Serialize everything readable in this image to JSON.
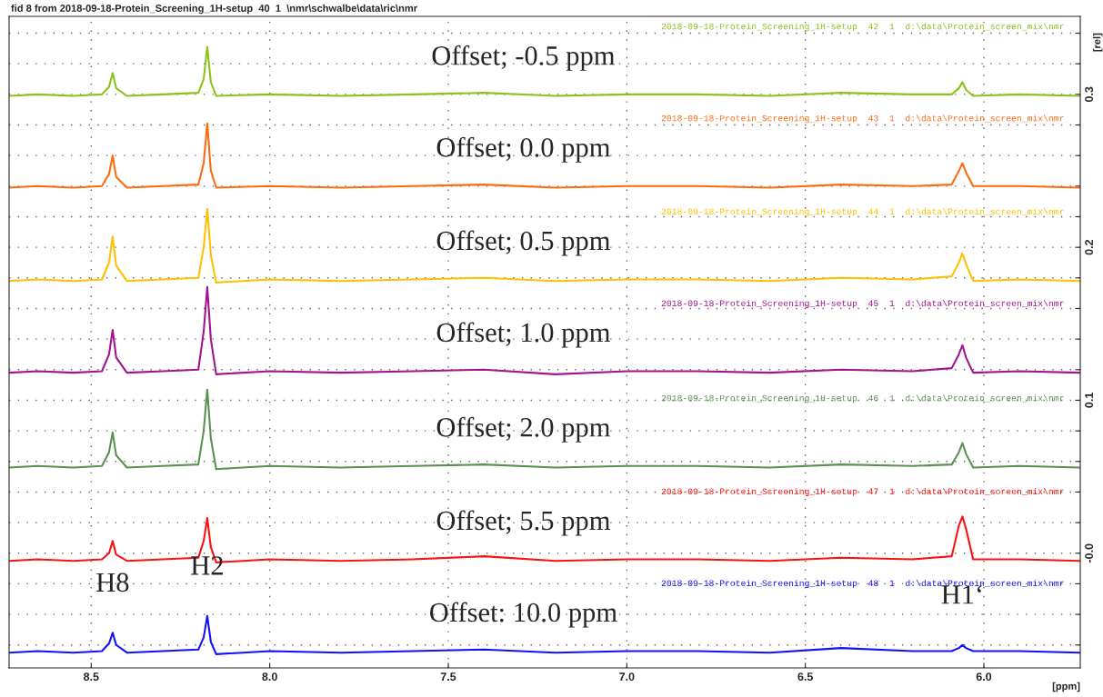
{
  "chart_data": {
    "type": "line",
    "ylabel": "[rel]",
    "xlabel": "[ppm]",
    "x": [
      8.73,
      8.65,
      8.55,
      8.47,
      8.45,
      8.44,
      8.43,
      8.4,
      8.3,
      8.2,
      8.185,
      8.175,
      8.165,
      8.15,
      8.0,
      7.8,
      7.6,
      7.4,
      7.2,
      7.0,
      6.8,
      6.6,
      6.4,
      6.2,
      6.09,
      6.07,
      6.06,
      6.05,
      6.03,
      5.9,
      5.73
    ],
    "series": [
      {
        "name": "2018-09-18-Protein_Screening_1H-setup  42  1  d:\\data\\Protein_screen_mix\\nmr",
        "color": "#8cc21c",
        "values": [
          0.299,
          0.3,
          0.299,
          0.3,
          0.305,
          0.314,
          0.304,
          0.299,
          0.3,
          0.301,
          0.31,
          0.331,
          0.308,
          0.299,
          0.3,
          0.299,
          0.3,
          0.301,
          0.299,
          0.3,
          0.3,
          0.299,
          0.301,
          0.3,
          0.3,
          0.304,
          0.308,
          0.303,
          0.299,
          0.3,
          0.299
        ]
      },
      {
        "name": "2018-09-18-Protein_Screening_1H-setup  43  1  d:\\data\\Protein_screen_mix\\nmr",
        "color": "#ff6a10",
        "values": [
          0.239,
          0.24,
          0.239,
          0.24,
          0.248,
          0.26,
          0.246,
          0.239,
          0.24,
          0.241,
          0.255,
          0.281,
          0.25,
          0.239,
          0.24,
          0.239,
          0.24,
          0.241,
          0.239,
          0.24,
          0.24,
          0.239,
          0.241,
          0.24,
          0.241,
          0.25,
          0.255,
          0.249,
          0.24,
          0.24,
          0.239
        ]
      },
      {
        "name": "2018-09-18-Protein_Screening_1H-setup  44  1  d:\\data\\Protein_screen_mix\\nmr",
        "color": "#ffc000",
        "values": [
          0.178,
          0.179,
          0.178,
          0.179,
          0.19,
          0.207,
          0.188,
          0.178,
          0.179,
          0.18,
          0.2,
          0.225,
          0.195,
          0.177,
          0.179,
          0.178,
          0.179,
          0.18,
          0.178,
          0.179,
          0.179,
          0.178,
          0.18,
          0.179,
          0.181,
          0.19,
          0.196,
          0.189,
          0.178,
          0.179,
          0.178
        ]
      },
      {
        "name": "2018-09-18-Protein_Screening_1H-setup  45  1  d:\\data\\Protein_screen_mix\\nmr",
        "color": "#a3128f",
        "values": [
          0.118,
          0.119,
          0.118,
          0.119,
          0.13,
          0.146,
          0.128,
          0.118,
          0.119,
          0.12,
          0.145,
          0.174,
          0.14,
          0.117,
          0.119,
          0.118,
          0.119,
          0.12,
          0.117,
          0.119,
          0.119,
          0.118,
          0.12,
          0.119,
          0.121,
          0.13,
          0.136,
          0.128,
          0.118,
          0.119,
          0.118
        ]
      },
      {
        "name": "2018-09-18-Protein_Screening_1H-setup  46  1  d:\\data\\Protein_screen_mix\\nmr",
        "color": "#5a9050",
        "values": [
          0.056,
          0.057,
          0.056,
          0.057,
          0.066,
          0.079,
          0.064,
          0.056,
          0.057,
          0.058,
          0.08,
          0.107,
          0.075,
          0.055,
          0.057,
          0.056,
          0.057,
          0.058,
          0.056,
          0.057,
          0.057,
          0.056,
          0.058,
          0.057,
          0.058,
          0.066,
          0.072,
          0.065,
          0.056,
          0.057,
          0.056
        ]
      },
      {
        "name": "2018-09-18-Protein_Screening_1H-setup  47  1  d:\\data\\Protein_screen_mix\\nmr",
        "color": "#ff1010",
        "values": [
          -0.005,
          -0.004,
          -0.005,
          -0.004,
          0.0,
          0.008,
          -0.001,
          -0.005,
          -0.004,
          -0.003,
          0.008,
          0.023,
          0.004,
          -0.006,
          -0.004,
          -0.005,
          -0.004,
          -0.002,
          -0.005,
          -0.004,
          -0.004,
          -0.005,
          -0.003,
          -0.004,
          -0.002,
          0.018,
          0.024,
          0.016,
          -0.004,
          -0.004,
          -0.005
        ]
      },
      {
        "name": "2018-09-18-Protein_Screening_1H-setup  48  1  d:\\data\\Protein_screen_mix\\nmr",
        "color": "#1010ff",
        "values": [
          -0.065,
          -0.064,
          -0.065,
          -0.064,
          -0.059,
          -0.052,
          -0.06,
          -0.065,
          -0.064,
          -0.063,
          -0.055,
          -0.041,
          -0.058,
          -0.066,
          -0.064,
          -0.065,
          -0.064,
          -0.063,
          -0.065,
          -0.064,
          -0.064,
          -0.065,
          -0.062,
          -0.064,
          -0.064,
          -0.062,
          -0.06,
          -0.062,
          -0.064,
          -0.064,
          -0.065
        ]
      }
    ],
    "xlim": [
      8.73,
      5.73
    ],
    "xticks": [
      8.5,
      {
        "value": 8.0,
        "label": "8.0"
      },
      7.5,
      {
        "value": 7.0,
        "label": "7.0"
      },
      6.5,
      {
        "value": 6.0,
        "label": "6.0"
      }
    ],
    "ylim": [
      -0.075,
      0.351
    ],
    "yticks": [
      {
        "value": -0.06,
        "label": null
      },
      {
        "value": -0.04,
        "label": null
      },
      {
        "value": -0.02,
        "label": null
      },
      {
        "value": 0,
        "label": "-0.0"
      },
      {
        "value": 0.02,
        "label": null
      },
      {
        "value": 0.04,
        "label": null
      },
      {
        "value": 0.06,
        "label": null
      },
      {
        "value": 0.08,
        "label": null
      },
      0.1,
      {
        "value": 0.12,
        "label": null
      },
      {
        "value": 0.14,
        "label": null
      },
      {
        "value": 0.16,
        "label": null
      },
      {
        "value": 0.18,
        "label": null
      },
      0.2,
      {
        "value": 0.22,
        "label": null
      },
      {
        "value": 0.24,
        "label": null
      },
      {
        "value": 0.26,
        "label": null
      },
      {
        "value": 0.28,
        "label": null
      },
      0.3,
      {
        "value": 0.32,
        "label": null
      },
      {
        "value": 0.34,
        "label": null
      }
    ],
    "grid": true,
    "line_style": "solid",
    "marker": "none",
    "legend": false,
    "annotations": [
      "fid 8 from 2018-09-18-Protein_Screening_1H-setup  40  1  \\nmr\\schwalbe\\data\\ric\\nmr",
      "Offset; -0.5 ppm",
      "Offset; 0.0 ppm",
      "Offset; 0.5 ppm",
      "Offset; 1.0 ppm",
      "Offset; 2.0 ppm",
      "Offset; 5.5 ppm",
      "Offset: 10.0 ppm",
      {
        "text": "H8",
        "x": 8.44,
        "y": -0.052
      },
      {
        "text": "H2",
        "x": 8.175,
        "y": -0.041
      },
      {
        "text": "H1‘",
        "x": 6.06,
        "y": -0.06
      }
    ]
  }
}
